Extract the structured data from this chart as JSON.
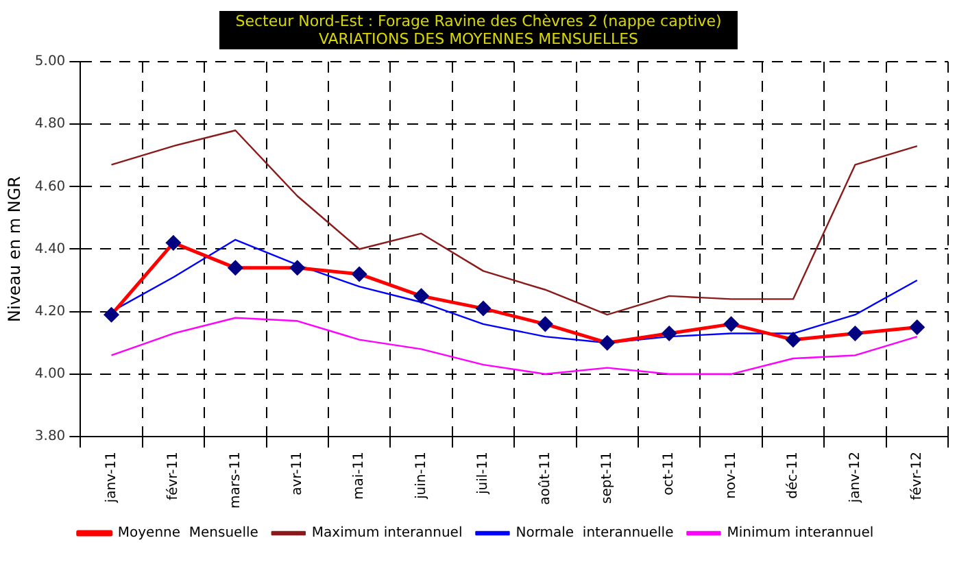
{
  "chart_data": {
    "type": "line",
    "title": "Secteur Nord-Est : Forage Ravine des Chèvres 2 (nappe captive)",
    "subtitle": "VARIATIONS DES MOYENNES MENSUELLES",
    "ylabel": "Niveau en m NGR",
    "categories": [
      "janv-11",
      "févr-11",
      "mars-11",
      "avr-11",
      "mai-11",
      "juin-11",
      "juil-11",
      "août-11",
      "sept-11",
      "oct-11",
      "nov-11",
      "déc-11",
      "janv-12",
      "févr-12"
    ],
    "series": [
      {
        "name": "Moyenne  Mensuelle",
        "color": "#ff0000",
        "marker": "diamond",
        "values": [
          4.19,
          4.42,
          4.34,
          4.34,
          4.32,
          4.25,
          4.21,
          4.16,
          4.1,
          4.13,
          4.16,
          4.11,
          4.13,
          4.15
        ]
      },
      {
        "name": "Maximum interannuel",
        "color": "#8b1a1a",
        "marker": "none",
        "values": [
          4.67,
          4.73,
          4.78,
          4.57,
          4.4,
          4.45,
          4.33,
          4.27,
          4.19,
          4.25,
          4.24,
          4.24,
          4.67,
          4.73
        ]
      },
      {
        "name": "Normale  interannuelle",
        "color": "#0000ff",
        "marker": "none",
        "values": [
          4.2,
          4.31,
          4.43,
          4.35,
          4.28,
          4.23,
          4.16,
          4.12,
          4.1,
          4.12,
          4.13,
          4.13,
          4.19,
          4.3
        ]
      },
      {
        "name": "Minimum interannuel",
        "color": "#ff00ff",
        "marker": "none",
        "values": [
          4.06,
          4.13,
          4.18,
          4.17,
          4.11,
          4.08,
          4.03,
          4.0,
          4.02,
          4.0,
          4.0,
          4.05,
          4.06,
          4.12
        ]
      }
    ],
    "ylim": [
      3.8,
      5.0
    ],
    "yticks": [
      {
        "value": 3.8,
        "label": "3.80"
      },
      {
        "value": 4.0,
        "label": "4.00"
      },
      {
        "value": 4.2,
        "label": "4.20"
      },
      {
        "value": 4.4,
        "label": "4.40"
      },
      {
        "value": 4.6,
        "label": "4.60"
      },
      {
        "value": 4.8,
        "label": "4.80"
      },
      {
        "value": 5.0,
        "label": "5.00"
      }
    ],
    "grid": true,
    "legend": "bottom",
    "line_style": "solid"
  }
}
